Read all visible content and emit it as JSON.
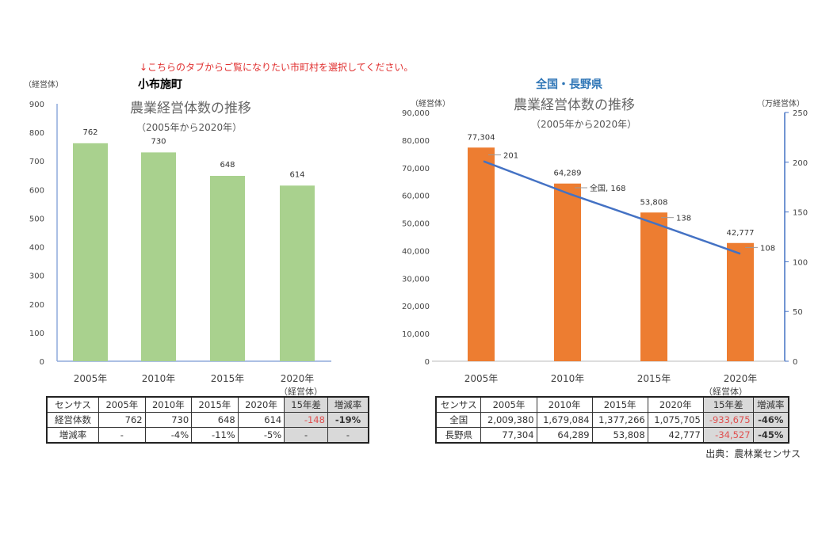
{
  "notice": "↓こちらのタブからご覧になりたい市町村を選択してください。",
  "left": {
    "place": "小布施町",
    "unit": "（経営体）",
    "x_unit": "（経営体）"
  },
  "right": {
    "place": "全国・長野県",
    "unit_left": "（経営体）",
    "unit_right": "（万経営体）",
    "x_unit": "（経営体）",
    "bar_label": "長野"
  },
  "chart_data": [
    {
      "type": "bar",
      "title": "農業経営体数の推移",
      "subtitle": "（2005年から2020年）",
      "categories": [
        "2005年",
        "2010年",
        "2015年",
        "2020年"
      ],
      "values": [
        762,
        730,
        648,
        614
      ],
      "ylim": [
        0,
        900
      ],
      "yticks": [
        0,
        100,
        200,
        300,
        400,
        500,
        600,
        700,
        800,
        900
      ],
      "ylabel": "（経営体）",
      "color": "#a9d18e"
    },
    {
      "type": "bar+line",
      "title": "農業経営体数の推移",
      "subtitle": "（2005年から2020年）",
      "categories": [
        "2005年",
        "2010年",
        "2015年",
        "2020年"
      ],
      "series": [
        {
          "name": "長野",
          "type": "bar",
          "axis": "left",
          "values": [
            77304,
            64289,
            53808,
            42777
          ],
          "labels": [
            "77,304",
            "64,289",
            "53,808",
            "42,777"
          ],
          "color": "#ed7d31"
        },
        {
          "name": "全国",
          "type": "line",
          "axis": "right",
          "values": [
            201,
            168,
            138,
            108
          ],
          "labels": [
            "201",
            "全国, 168",
            "138",
            "108"
          ],
          "color": "#4472c4"
        }
      ],
      "ylim": [
        0,
        90000
      ],
      "yticks": [
        "0",
        "10,000",
        "20,000",
        "30,000",
        "40,000",
        "50,000",
        "60,000",
        "70,000",
        "80,000",
        "90,000"
      ],
      "y2lim": [
        0,
        250
      ],
      "y2ticks": [
        "0",
        "50",
        "100",
        "150",
        "200",
        "250"
      ]
    }
  ],
  "table_left": {
    "header": [
      "センサス",
      "2005年",
      "2010年",
      "2015年",
      "2020年",
      "15年差",
      "増減率"
    ],
    "rows": [
      [
        "経営体数",
        "762",
        "730",
        "648",
        "614",
        "-148",
        "-19%"
      ],
      [
        "増減率",
        "-",
        "-4%",
        "-11%",
        "-5%",
        "-",
        "-"
      ]
    ]
  },
  "table_right": {
    "header": [
      "センサス",
      "2005年",
      "2010年",
      "2015年",
      "2020年",
      "15年差",
      "増減率"
    ],
    "rows": [
      [
        "全国",
        "2,009,380",
        "1,679,084",
        "1,377,266",
        "1,075,705",
        "-933,675",
        "-46%"
      ],
      [
        "長野県",
        "77,304",
        "64,289",
        "53,808",
        "42,777",
        "-34,527",
        "-45%"
      ]
    ]
  },
  "source": "出典：農林業センサス"
}
